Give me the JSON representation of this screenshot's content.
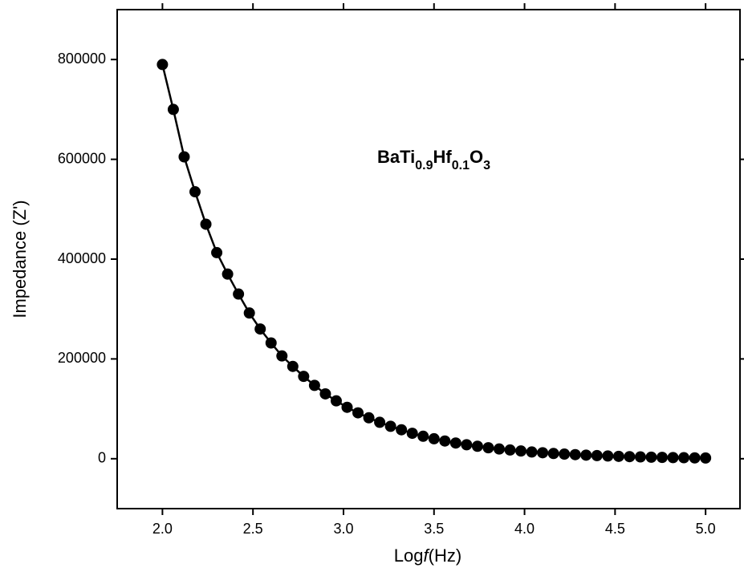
{
  "chart_data": {
    "type": "line",
    "x_label": [
      "Log",
      "f",
      "(Hz)"
    ],
    "y_label": "Impedance (Z')",
    "annotation": [
      "BaTi",
      "0.9",
      "Hf",
      "0.1",
      "O",
      "3"
    ],
    "x": [
      2,
      2.06,
      2.12,
      2.18,
      2.24,
      2.3,
      2.36,
      2.42,
      2.48,
      2.54,
      2.6,
      2.66,
      2.72,
      2.78,
      2.84,
      2.9,
      2.96,
      3.02,
      3.08,
      3.14,
      3.2,
      3.26,
      3.32,
      3.38,
      3.44,
      3.5,
      3.56,
      3.62,
      3.68,
      3.74,
      3.8,
      3.86,
      3.92,
      3.98,
      4.04,
      4.1,
      4.16,
      4.22,
      4.28,
      4.34,
      4.4,
      4.46,
      4.52,
      4.58,
      4.64,
      4.7,
      4.76,
      4.82,
      4.88,
      4.94,
      5.0
    ],
    "values": [
      790000,
      700000,
      605000,
      535000,
      470000,
      413000,
      370000,
      330000,
      292000,
      260000,
      232000,
      206000,
      185000,
      165000,
      147000,
      130000,
      116000,
      103000,
      92000,
      82000,
      73000,
      65000,
      58000,
      51000,
      45000,
      40000,
      35500,
      31500,
      28000,
      25000,
      22000,
      19500,
      17500,
      15500,
      13500,
      12000,
      10500,
      9300,
      8200,
      7200,
      6300,
      5500,
      4800,
      4200,
      3600,
      3100,
      2700,
      2300,
      2000,
      1700,
      1500
    ],
    "color": "#000000",
    "xlim": [
      1.75,
      5.19
    ],
    "ylim": [
      -100000,
      900000
    ],
    "xticks": [
      {
        "value": 2,
        "label": "2.0"
      },
      {
        "value": 2.5,
        "label": "2.5"
      },
      {
        "value": 3,
        "label": "3.0"
      },
      {
        "value": 3.5,
        "label": "3.5"
      },
      {
        "value": 4,
        "label": "4.0"
      },
      {
        "value": 4.5,
        "label": "4.5"
      },
      {
        "value": 5,
        "label": "5.0"
      }
    ],
    "yticks": [
      0,
      200000,
      400000,
      600000,
      800000
    ]
  }
}
